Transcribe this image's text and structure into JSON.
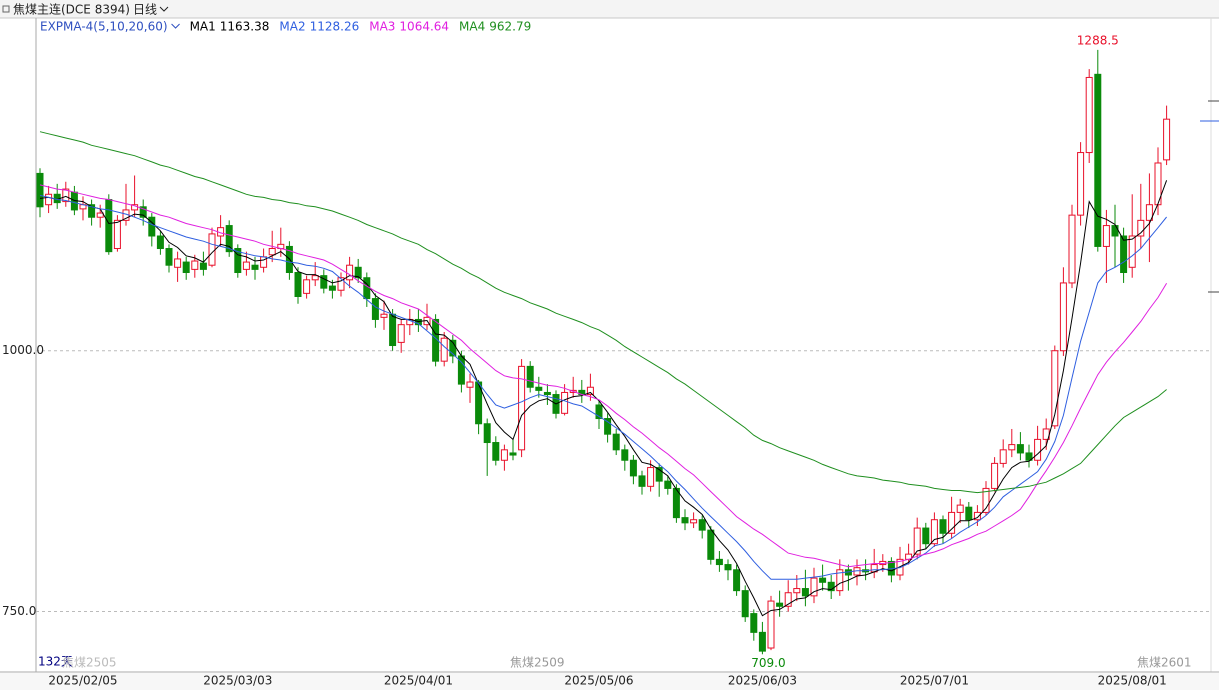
{
  "chart_data": {
    "type": "candlestick",
    "title": "焦煤主连(DCE 8394)",
    "period": "日线",
    "indicator": "EXPMA-4(5,10,20,60)",
    "day_count": "132天",
    "contracts": [
      "焦煤2505",
      "焦煤2509",
      "焦煤2601"
    ],
    "high_label": "1288.5",
    "low_label": "709.0",
    "up_color": "#e8102a",
    "down_color": "#0a8a0a",
    "ylim": [
      692,
      1319
    ],
    "yticks": [
      {
        "value": 750,
        "label": "750.0"
      },
      {
        "value": 1000,
        "label": "1000.0"
      }
    ],
    "grid": true,
    "categories": [
      null,
      null,
      null,
      null,
      null,
      "2025/02/05",
      null,
      null,
      null,
      null,
      null,
      null,
      null,
      null,
      null,
      null,
      null,
      null,
      null,
      null,
      null,
      null,
      null,
      "2025/03/03",
      null,
      null,
      null,
      null,
      null,
      null,
      null,
      null,
      null,
      null,
      null,
      null,
      null,
      null,
      null,
      null,
      null,
      null,
      null,
      null,
      "2025/04/01",
      null,
      null,
      null,
      null,
      null,
      null,
      null,
      null,
      null,
      null,
      null,
      null,
      null,
      null,
      null,
      null,
      null,
      null,
      null,
      null,
      "2025/05/06",
      null,
      null,
      null,
      null,
      null,
      null,
      null,
      null,
      null,
      null,
      null,
      null,
      null,
      null,
      null,
      null,
      null,
      null,
      "2025/06/03",
      null,
      null,
      null,
      null,
      null,
      null,
      null,
      null,
      null,
      null,
      null,
      null,
      null,
      null,
      null,
      null,
      null,
      null,
      null,
      "2025/07/01",
      null,
      null,
      null,
      null,
      null,
      null,
      null,
      null,
      null,
      null,
      null,
      null,
      null,
      null,
      null,
      null,
      null,
      null,
      null,
      null,
      null,
      null,
      "2025/08/01",
      null,
      null,
      null,
      null
    ],
    "open": [
      1170,
      1140,
      1150,
      1143,
      1152,
      1136,
      1140,
      1128,
      1145,
      1098,
      1125,
      1135,
      1138,
      1128,
      1110,
      1098,
      1080,
      1085,
      1078,
      1084,
      1082,
      1110,
      1120,
      1098,
      1078,
      1082,
      1080,
      1092,
      1098,
      1100,
      1075,
      1055,
      1068,
      1072,
      1062,
      1058,
      1068,
      1080,
      1070,
      1050,
      1032,
      1035,
      1008,
      1025,
      1030,
      1025,
      1030,
      990,
      1010,
      995,
      965,
      970,
      930,
      912,
      895,
      902,
      905,
      985,
      965,
      960,
      958,
      940,
      960,
      962,
      958,
      948,
      935,
      920,
      905,
      895,
      880,
      870,
      888,
      875,
      868,
      840,
      835,
      838,
      828,
      800,
      795,
      790,
      770,
      748,
      730,
      715,
      758,
      755,
      768,
      772,
      765,
      782,
      778,
      770,
      790,
      785,
      790,
      788,
      795,
      798,
      785,
      800,
      805,
      830,
      815,
      838,
      825,
      845,
      850,
      838,
      845,
      868,
      892,
      905,
      910,
      902,
      895,
      915,
      928,
      1000,
      1065,
      1130,
      1190,
      1265,
      1100,
      1120,
      1110,
      1080,
      1110,
      1125,
      1140,
      1183
    ],
    "high": [
      1175,
      1158,
      1160,
      1162,
      1158,
      1148,
      1145,
      1140,
      1150,
      1130,
      1160,
      1168,
      1145,
      1132,
      1115,
      1102,
      1095,
      1090,
      1092,
      1095,
      1118,
      1130,
      1125,
      1102,
      1095,
      1090,
      1098,
      1115,
      1118,
      1105,
      1080,
      1072,
      1085,
      1078,
      1068,
      1075,
      1090,
      1088,
      1075,
      1055,
      1048,
      1040,
      1030,
      1040,
      1040,
      1045,
      1035,
      1018,
      1015,
      1000,
      978,
      972,
      935,
      918,
      910,
      915,
      992,
      990,
      975,
      968,
      962,
      968,
      975,
      972,
      978,
      952,
      940,
      925,
      910,
      900,
      885,
      895,
      892,
      880,
      872,
      848,
      845,
      842,
      832,
      808,
      800,
      795,
      775,
      752,
      740,
      765,
      770,
      780,
      785,
      790,
      792,
      795,
      785,
      800,
      795,
      800,
      800,
      810,
      805,
      802,
      812,
      815,
      840,
      835,
      845,
      842,
      860,
      858,
      855,
      852,
      875,
      898,
      915,
      925,
      922,
      910,
      928,
      935,
      1005,
      1080,
      1140,
      1200,
      1270,
      1288.5,
      1135,
      1140,
      1118,
      1150,
      1160,
      1170,
      1195,
      1235
    ],
    "low": [
      1128,
      1132,
      1136,
      1138,
      1130,
      1125,
      1120,
      1118,
      1092,
      1095,
      1120,
      1128,
      1120,
      1100,
      1092,
      1075,
      1066,
      1068,
      1070,
      1072,
      1080,
      1100,
      1090,
      1070,
      1072,
      1068,
      1075,
      1085,
      1090,
      1068,
      1045,
      1050,
      1062,
      1055,
      1050,
      1052,
      1060,
      1065,
      1042,
      1022,
      1020,
      1000,
      998,
      1015,
      1018,
      1020,
      985,
      985,
      988,
      960,
      950,
      920,
      880,
      890,
      885,
      895,
      898,
      960,
      955,
      948,
      935,
      938,
      955,
      950,
      952,
      925,
      912,
      900,
      885,
      872,
      862,
      865,
      860,
      862,
      835,
      828,
      830,
      820,
      795,
      788,
      780,
      765,
      740,
      722,
      709,
      713,
      745,
      750,
      760,
      755,
      758,
      770,
      762,
      765,
      770,
      775,
      780,
      782,
      788,
      778,
      780,
      795,
      800,
      810,
      812,
      815,
      820,
      835,
      830,
      832,
      842,
      865,
      888,
      898,
      895,
      888,
      890,
      905,
      925,
      995,
      1060,
      1120,
      1180,
      1095,
      1065,
      1080,
      1065,
      1070,
      1098,
      1085,
      1130,
      1178
    ],
    "close": [
      1138,
      1150,
      1142,
      1155,
      1135,
      1140,
      1128,
      1132,
      1095,
      1125,
      1135,
      1140,
      1128,
      1110,
      1098,
      1082,
      1088,
      1075,
      1086,
      1078,
      1112,
      1118,
      1095,
      1075,
      1085,
      1078,
      1090,
      1098,
      1102,
      1075,
      1052,
      1068,
      1072,
      1060,
      1058,
      1070,
      1082,
      1070,
      1050,
      1030,
      1035,
      1005,
      1025,
      1030,
      1025,
      1032,
      990,
      1012,
      995,
      968,
      970,
      930,
      912,
      895,
      905,
      900,
      985,
      965,
      962,
      958,
      940,
      960,
      962,
      958,
      965,
      935,
      920,
      905,
      895,
      880,
      870,
      888,
      875,
      868,
      840,
      835,
      838,
      828,
      800,
      795,
      790,
      770,
      745,
      730,
      712,
      760,
      755,
      768,
      772,
      765,
      782,
      778,
      770,
      790,
      785,
      792,
      788,
      795,
      798,
      785,
      800,
      805,
      830,
      815,
      838,
      825,
      845,
      852,
      838,
      845,
      868,
      892,
      905,
      910,
      902,
      895,
      915,
      925,
      1000,
      1065,
      1130,
      1190,
      1262,
      1100,
      1120,
      1110,
      1075,
      1110,
      1125,
      1140,
      1180,
      1222
    ],
    "series": [
      {
        "name": "MA1",
        "color": "#000000",
        "values": [
          1146,
          1147,
          1145,
          1148,
          1144,
          1143,
          1138,
          1136,
          1122,
          1123,
          1127,
          1131,
          1130,
          1123,
          1115,
          1104,
          1099,
          1091,
          1089,
          1085,
          1094,
          1102,
          1100,
          1092,
          1090,
          1086,
          1087,
          1091,
          1095,
          1088,
          1076,
          1073,
          1073,
          1069,
          1065,
          1067,
          1072,
          1071,
          1064,
          1053,
          1047,
          1033,
          1030,
          1030,
          1028,
          1029,
          1016,
          1015,
          1008,
          995,
          987,
          968,
          949,
          931,
          922,
          915,
          938,
          947,
          952,
          954,
          949,
          953,
          956,
          957,
          960,
          952,
          941,
          929,
          918,
          905,
          893,
          891,
          886,
          880,
          867,
          856,
          850,
          843,
          829,
          818,
          809,
          796,
          779,
          763,
          746,
          751,
          752,
          757,
          762,
          763,
          769,
          772,
          771,
          777,
          780,
          784,
          785,
          788,
          791,
          789,
          793,
          797,
          808,
          810,
          819,
          821,
          829,
          837,
          837,
          840,
          849,
          863,
          877,
          888,
          893,
          894,
          901,
          909,
          939,
          981,
          1031,
          1084,
          1143,
          1129,
          1126,
          1121,
          1106,
          1107,
          1113,
          1122,
          1141,
          1163.38
        ]
      },
      {
        "name": "MA2",
        "color": "#2f5fe0",
        "values": [
          1149,
          1147,
          1145,
          1144,
          1142,
          1140,
          1138,
          1136,
          1135,
          1133,
          1131,
          1128,
          1125,
          1121,
          1118,
          1115,
          1112,
          1109,
          1107,
          1105,
          1102,
          1100,
          1098,
          1095,
          1093,
          1091,
          1090,
          1088,
          1087,
          1085,
          1084,
          1082,
          1081,
          1079,
          1076,
          1069,
          1062,
          1056,
          1049,
          1042,
          1038,
          1035,
          1032,
          1029,
          1026,
          1019,
          1012,
          1004,
          997,
          989,
          979,
          969,
          958,
          948,
          945,
          948,
          951,
          955,
          958,
          956,
          954,
          952,
          949,
          947,
          942,
          937,
          932,
          926,
          920,
          913,
          906,
          899,
          891,
          884,
          875,
          867,
          858,
          849,
          841,
          833,
          825,
          817,
          808,
          798,
          789,
          781,
          781,
          781,
          781,
          782,
          783,
          784,
          786,
          787,
          788,
          789,
          789,
          790,
          790,
          791,
          792,
          796,
          801,
          806,
          813,
          815,
          820,
          826,
          831,
          836,
          842,
          850,
          860,
          866,
          872,
          878,
          884,
          896,
          913,
          938,
          974,
          1009,
          1037,
          1065,
          1076,
          1080,
          1085,
          1091,
          1098,
          1108,
          1118,
          1128.26
        ]
      },
      {
        "name": "MA3",
        "color": "#e020e0",
        "values": [
          1159,
          1157,
          1155,
          1154,
          1152,
          1150,
          1148,
          1146,
          1145,
          1143,
          1141,
          1139,
          1136,
          1133,
          1130,
          1128,
          1125,
          1122,
          1120,
          1118,
          1116,
          1113,
          1111,
          1109,
          1107,
          1105,
          1102,
          1100,
          1098,
          1096,
          1093,
          1091,
          1089,
          1087,
          1083,
          1078,
          1073,
          1067,
          1062,
          1057,
          1053,
          1050,
          1046,
          1043,
          1040,
          1034,
          1028,
          1022,
          1016,
          1010,
          1002,
          995,
          988,
          981,
          976,
          974,
          973,
          971,
          969,
          967,
          966,
          964,
          961,
          958,
          956,
          953,
          947,
          940,
          934,
          927,
          921,
          914,
          907,
          901,
          894,
          887,
          881,
          873,
          865,
          857,
          849,
          841,
          835,
          829,
          824,
          818,
          812,
          806,
          804,
          802,
          801,
          799,
          797,
          795,
          793,
          794,
          795,
          796,
          796,
          797,
          798,
          800,
          803,
          805,
          807,
          810,
          814,
          817,
          820,
          824,
          827,
          832,
          837,
          842,
          848,
          860,
          873,
          885,
          898,
          912,
          928,
          945,
          961,
          977,
          989,
          999,
          1008,
          1018,
          1028,
          1040,
          1051,
          1064.64
        ]
      },
      {
        "name": "MA4",
        "color": "#1f8f1f",
        "values": [
          1210,
          1208,
          1206,
          1204,
          1202,
          1200,
          1197,
          1195,
          1193,
          1191,
          1189,
          1187,
          1184,
          1181,
          1178,
          1176,
          1173,
          1170,
          1167,
          1165,
          1162,
          1159,
          1156,
          1153,
          1150,
          1148,
          1147,
          1145,
          1144,
          1142,
          1141,
          1139,
          1138,
          1136,
          1134,
          1131,
          1128,
          1125,
          1121,
          1118,
          1115,
          1112,
          1108,
          1105,
          1102,
          1097,
          1093,
          1088,
          1083,
          1079,
          1074,
          1070,
          1065,
          1060,
          1056,
          1053,
          1050,
          1046,
          1043,
          1040,
          1036,
          1033,
          1030,
          1027,
          1023,
          1020,
          1015,
          1010,
          1004,
          999,
          994,
          989,
          984,
          979,
          973,
          968,
          962,
          956,
          950,
          944,
          938,
          932,
          926,
          919,
          914,
          911,
          907,
          904,
          901,
          898,
          895,
          891,
          888,
          885,
          882,
          880,
          879,
          878,
          876,
          875,
          874,
          872,
          871,
          870,
          868,
          867,
          866,
          866,
          865,
          864,
          865,
          866,
          867,
          868,
          869,
          870,
          872,
          874,
          878,
          882,
          887,
          892,
          901,
          910,
          919,
          928,
          936,
          941,
          946,
          951,
          956,
          962.79
        ]
      }
    ]
  }
}
